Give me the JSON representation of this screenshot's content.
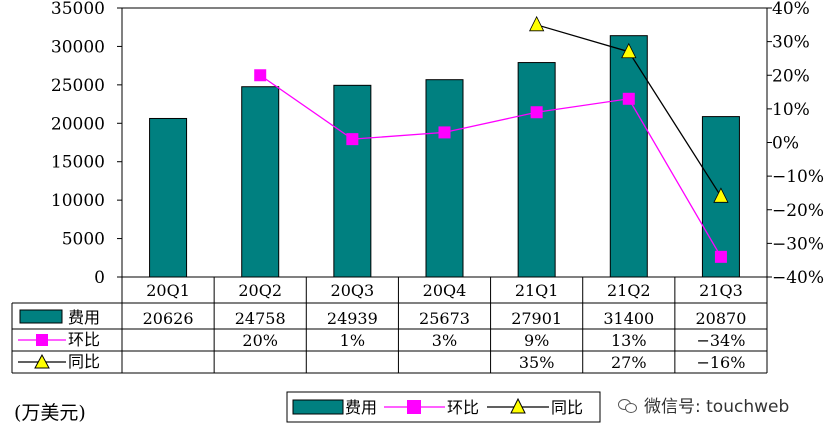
{
  "chart_data": {
    "type": "bar+line",
    "categories": [
      "20Q1",
      "20Q2",
      "20Q3",
      "20Q4",
      "21Q1",
      "21Q2",
      "21Q3"
    ],
    "series": [
      {
        "name": "费用",
        "kind": "bar",
        "axis": "left",
        "color": "#008080",
        "values": [
          20626,
          24758,
          24939,
          25673,
          27901,
          31400,
          20870
        ]
      },
      {
        "name": "环比",
        "kind": "line",
        "axis": "right",
        "color": "#ff00ff",
        "marker": "square",
        "values": [
          null,
          20,
          1,
          3,
          9,
          13,
          -34
        ]
      },
      {
        "name": "同比",
        "kind": "line",
        "axis": "right",
        "color": "#000000",
        "marker": "triangle",
        "marker_fill": "#ffff00",
        "values": [
          null,
          null,
          null,
          null,
          35,
          27,
          -16
        ]
      }
    ],
    "y_left": {
      "min": 0,
      "max": 35000,
      "step": 5000
    },
    "y_right": {
      "min": -40,
      "max": 40,
      "step": 10,
      "suffix": "%"
    },
    "table": {
      "rows": [
        {
          "label": "费用",
          "cells": [
            "20626",
            "24758",
            "24939",
            "25673",
            "27901",
            "31400",
            "20870"
          ]
        },
        {
          "label": "环比",
          "cells": [
            "",
            "20%",
            "1%",
            "3%",
            "9%",
            "13%",
            "-34%"
          ]
        },
        {
          "label": "同比",
          "cells": [
            "",
            "",
            "",
            "",
            "35%",
            "27%",
            "-16%"
          ]
        }
      ]
    },
    "legend": [
      "费用",
      "环比",
      "同比"
    ],
    "legend_position": "bottom",
    "grid": false
  },
  "unit_label": "(万美元)",
  "watermark": "微信号: touchweb"
}
